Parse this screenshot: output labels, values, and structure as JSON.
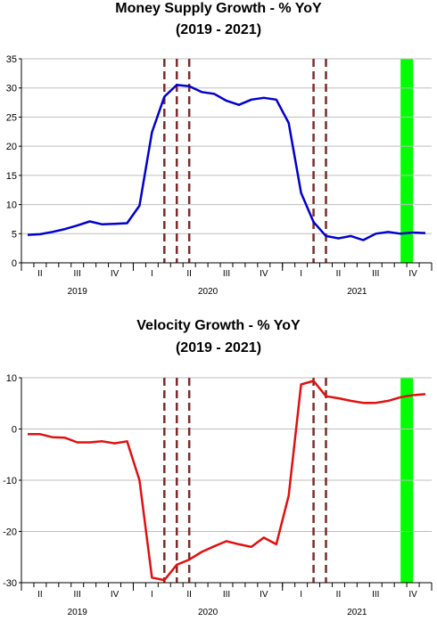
{
  "chart_data": [
    {
      "type": "line",
      "title": "Money Supply Growth - % YoY",
      "subtitle": "(2019 - 2021)",
      "x_quarters": [
        "II",
        "III",
        "IV",
        "I",
        "II",
        "III",
        "IV",
        "I",
        "II",
        "III",
        "IV"
      ],
      "x_years": [
        "2019",
        "2020",
        "2021"
      ],
      "ylim": [
        0,
        35
      ],
      "yticks": [
        0,
        5,
        10,
        15,
        20,
        25,
        30,
        35
      ],
      "grid": true,
      "line_color": "#0000cc",
      "dashed_lines_color": "#7b2c2c",
      "shade_color": "#00ff00",
      "dashed_months": [
        "2020-03",
        "2020-04",
        "2020-05",
        "2021-03",
        "2021-04"
      ],
      "shaded_range": [
        "2021-10",
        "2021-11"
      ],
      "series": [
        {
          "x": [
            "2019-04",
            "2019-05",
            "2019-06",
            "2019-07",
            "2019-08",
            "2019-09",
            "2019-10",
            "2019-11",
            "2019-12",
            "2020-01",
            "2020-02",
            "2020-03",
            "2020-04",
            "2020-05",
            "2020-06",
            "2020-07",
            "2020-08",
            "2020-09",
            "2020-10",
            "2020-11",
            "2020-12",
            "2021-01",
            "2021-02",
            "2021-03",
            "2021-04",
            "2021-05",
            "2021-06",
            "2021-07",
            "2021-08",
            "2021-09",
            "2021-10",
            "2021-11",
            "2021-12"
          ],
          "values": [
            4.8,
            4.9,
            5.3,
            5.8,
            6.4,
            7.1,
            6.6,
            6.7,
            6.8,
            9.8,
            22.4,
            28.5,
            30.5,
            30.3,
            29.3,
            29.0,
            27.8,
            27.1,
            28.0,
            28.3,
            28.0,
            24.0,
            12.0,
            7.0,
            4.6,
            4.2,
            4.6,
            3.9,
            5.0,
            5.3,
            5.0,
            5.2,
            5.1
          ]
        }
      ]
    },
    {
      "type": "line",
      "title": "Velocity Growth - % YoY",
      "subtitle": "(2019 - 2021)",
      "x_quarters": [
        "II",
        "III",
        "IV",
        "I",
        "II",
        "III",
        "IV",
        "I",
        "II",
        "III",
        "IV"
      ],
      "x_years": [
        "2019",
        "2020",
        "2021"
      ],
      "ylim": [
        -30,
        10
      ],
      "yticks": [
        -30,
        -20,
        -10,
        0,
        10
      ],
      "grid": true,
      "line_color": "#e01010",
      "dashed_lines_color": "#7b2c2c",
      "shade_color": "#00ff00",
      "dashed_months": [
        "2020-03",
        "2020-04",
        "2020-05",
        "2021-03",
        "2021-04"
      ],
      "shaded_range": [
        "2021-10",
        "2021-11"
      ],
      "series": [
        {
          "x": [
            "2019-04",
            "2019-05",
            "2019-06",
            "2019-07",
            "2019-08",
            "2019-09",
            "2019-10",
            "2019-11",
            "2019-12",
            "2020-01",
            "2020-02",
            "2020-03",
            "2020-04",
            "2020-05",
            "2020-06",
            "2020-07",
            "2020-08",
            "2020-09",
            "2020-10",
            "2020-11",
            "2020-12",
            "2021-01",
            "2021-02",
            "2021-03",
            "2021-04",
            "2021-05",
            "2021-06",
            "2021-07",
            "2021-08",
            "2021-09",
            "2021-10",
            "2021-11",
            "2021-12"
          ],
          "values": [
            -1.0,
            -1.0,
            -1.6,
            -1.7,
            -2.6,
            -2.6,
            -2.4,
            -2.8,
            -2.4,
            -10.0,
            -29.0,
            -29.5,
            -26.5,
            -25.5,
            -24.0,
            -22.9,
            -21.9,
            -22.5,
            -23.0,
            -21.2,
            -22.5,
            -13.0,
            8.7,
            9.4,
            6.4,
            6.0,
            5.5,
            5.1,
            5.1,
            5.5,
            6.2,
            6.6,
            6.8
          ]
        }
      ]
    }
  ]
}
